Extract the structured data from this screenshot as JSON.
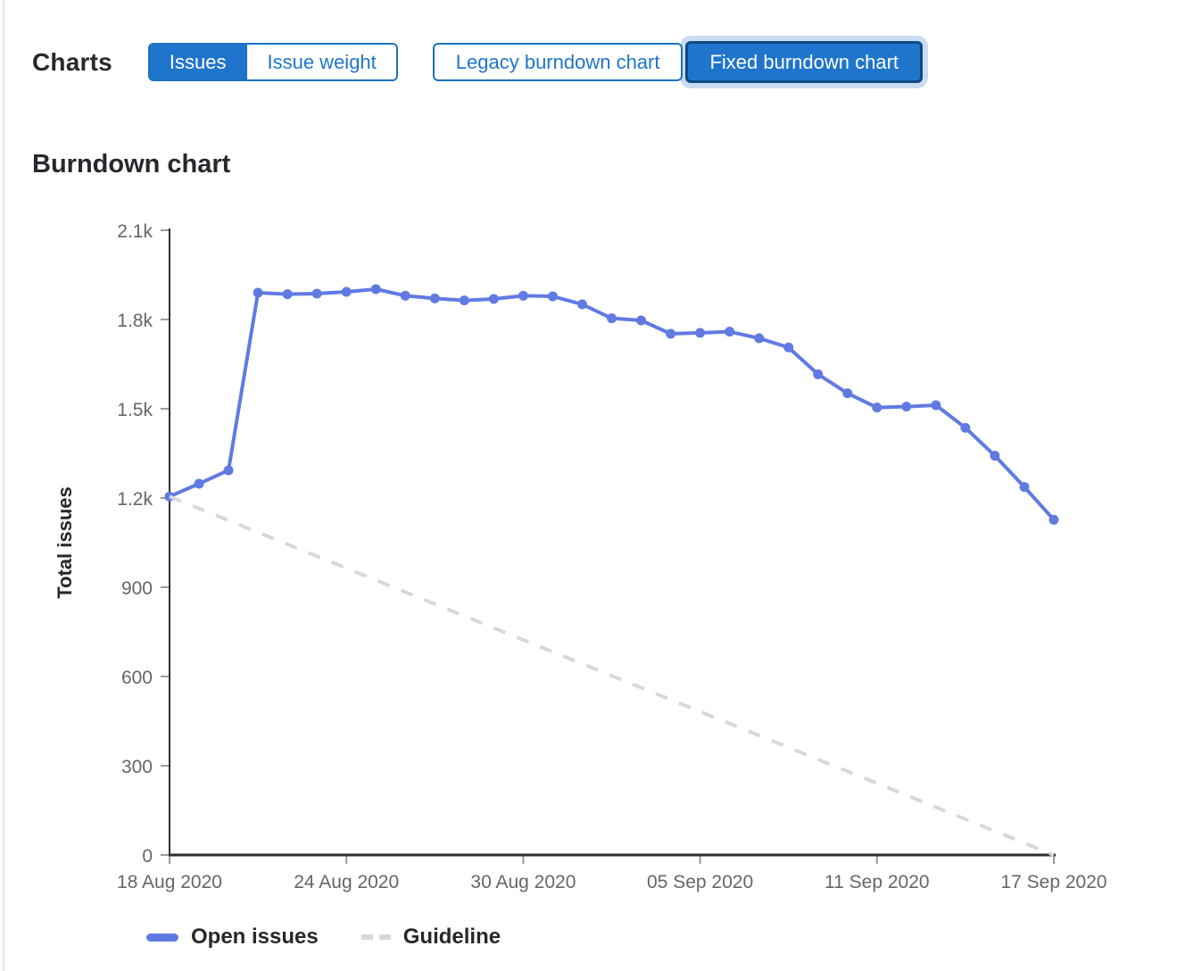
{
  "header": {
    "charts_label": "Charts",
    "view_toggle": {
      "options": [
        {
          "label": "Issues",
          "selected": true
        },
        {
          "label": "Issue weight",
          "selected": false
        }
      ]
    },
    "chart_toggle": {
      "options": [
        {
          "label": "Legacy burndown chart",
          "selected": false
        },
        {
          "label": "Fixed burndown chart",
          "selected": true
        }
      ]
    },
    "accent_color": "#1f75cb"
  },
  "section": {
    "title": "Burndown chart"
  },
  "chart_data": {
    "type": "line",
    "title": "Burndown chart",
    "ylabel": "Total issues",
    "xlabel": "",
    "ylim": [
      0,
      2100
    ],
    "grid": false,
    "legend_position": "bottom",
    "x": [
      "18 Aug 2020",
      "19 Aug 2020",
      "20 Aug 2020",
      "21 Aug 2020",
      "22 Aug 2020",
      "23 Aug 2020",
      "24 Aug 2020",
      "25 Aug 2020",
      "26 Aug 2020",
      "27 Aug 2020",
      "28 Aug 2020",
      "29 Aug 2020",
      "30 Aug 2020",
      "31 Aug 2020",
      "01 Sep 2020",
      "02 Sep 2020",
      "03 Sep 2020",
      "04 Sep 2020",
      "05 Sep 2020",
      "06 Sep 2020",
      "07 Sep 2020",
      "08 Sep 2020",
      "09 Sep 2020",
      "10 Sep 2020",
      "11 Sep 2020",
      "12 Sep 2020",
      "13 Sep 2020",
      "14 Sep 2020",
      "15 Sep 2020",
      "16 Sep 2020",
      "17 Sep 2020"
    ],
    "series": [
      {
        "name": "Open issues",
        "style": "solid",
        "markers": true,
        "color": "#617ae2",
        "values": [
          1205,
          1248,
          1293,
          1890,
          1885,
          1887,
          1893,
          1902,
          1880,
          1871,
          1864,
          1869,
          1880,
          1878,
          1851,
          1804,
          1797,
          1752,
          1755,
          1759,
          1737,
          1706,
          1616,
          1552,
          1504,
          1507,
          1512,
          1436,
          1342,
          1237,
          1127
        ]
      },
      {
        "name": "Guideline",
        "style": "dashed",
        "markers": false,
        "color": "#d8d8d9",
        "x_indices": [
          0,
          30
        ],
        "values": [
          1205,
          0
        ]
      }
    ],
    "yticks": [
      {
        "value": 0,
        "label": "0"
      },
      {
        "value": 300,
        "label": "300"
      },
      {
        "value": 600,
        "label": "600"
      },
      {
        "value": 900,
        "label": "900"
      },
      {
        "value": 1200,
        "label": "1.2k"
      },
      {
        "value": 1500,
        "label": "1.5k"
      },
      {
        "value": 1800,
        "label": "1.8k"
      },
      {
        "value": 2100,
        "label": "2.1k"
      }
    ],
    "xticks": [
      {
        "index": 0,
        "label": "18 Aug 2020"
      },
      {
        "index": 6,
        "label": "24 Aug 2020"
      },
      {
        "index": 12,
        "label": "30 Aug 2020"
      },
      {
        "index": 18,
        "label": "05 Sep 2020"
      },
      {
        "index": 24,
        "label": "11 Sep 2020"
      },
      {
        "index": 30,
        "label": "17 Sep 2020"
      }
    ],
    "axis_color": "#2e2e33",
    "tick_color": "#9a9a9a",
    "tick_label_color": "#666666"
  }
}
